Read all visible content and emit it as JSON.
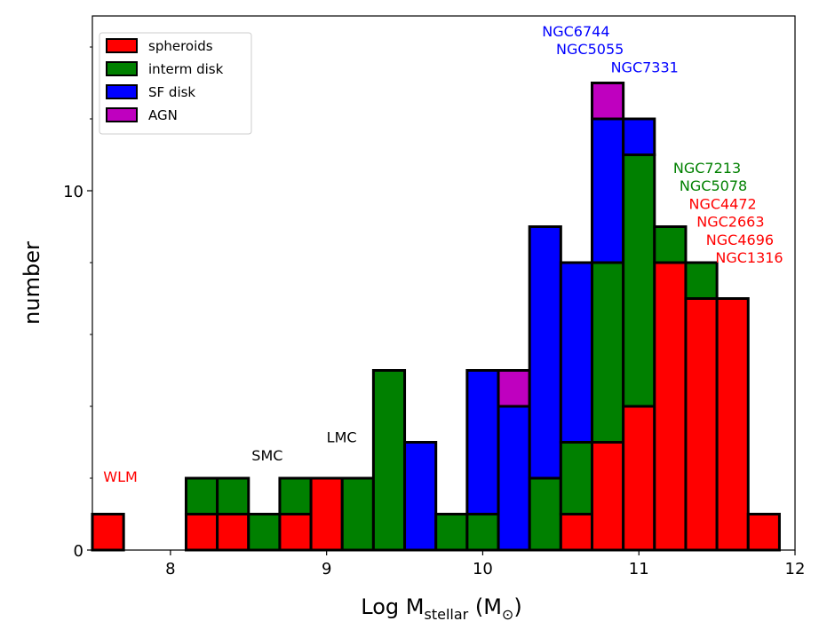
{
  "chart_data": {
    "type": "bar",
    "stacked": true,
    "xlabel": "Log M",
    "xlabel_sub": "stellar",
    "xlabel_units_prefix": " (M",
    "xlabel_units_sub": "⊙",
    "xlabel_units_suffix": ")",
    "ylabel": "number",
    "xlim": [
      7.5,
      12
    ],
    "ylim": [
      0,
      15
    ],
    "xticks": [
      8,
      9,
      10,
      11,
      12
    ],
    "xtick_labels": [
      "8",
      "9",
      "10",
      "11",
      "12"
    ],
    "yticks": [
      0,
      10
    ],
    "ytick_labels": [
      "0",
      "10"
    ],
    "bin_width": 0.2,
    "bin_starts": [
      7.5,
      8.1,
      8.3,
      8.5,
      8.7,
      8.9,
      9.1,
      9.3,
      9.5,
      9.7,
      9.9,
      10.1,
      10.3,
      10.5,
      10.7,
      10.9,
      11.1,
      11.3,
      11.5,
      11.7
    ],
    "series": [
      {
        "name": "spheroids",
        "color": "#ff0000",
        "values": [
          1,
          1,
          1,
          0,
          1,
          2,
          0,
          0,
          0,
          0,
          0,
          0,
          0,
          1,
          3,
          4,
          8,
          7,
          7,
          1
        ]
      },
      {
        "name": "interm disk",
        "color": "#008000",
        "values": [
          0,
          1,
          1,
          1,
          1,
          0,
          2,
          5,
          0,
          1,
          1,
          0,
          2,
          2,
          5,
          7,
          1,
          1,
          0,
          0
        ]
      },
      {
        "name": "SF disk",
        "color": "#0000ff",
        "values": [
          0,
          0,
          0,
          0,
          0,
          0,
          0,
          0,
          3,
          0,
          4,
          4,
          7,
          5,
          4,
          1,
          0,
          0,
          0,
          0
        ]
      },
      {
        "name": "AGN",
        "color": "#bf00bf",
        "values": [
          0,
          0,
          0,
          0,
          0,
          0,
          0,
          0,
          0,
          0,
          0,
          1,
          0,
          0,
          1,
          0,
          0,
          0,
          0,
          0
        ]
      }
    ],
    "legend_position": "top-left",
    "annotations": [
      {
        "text": "WLM",
        "color": "#ff0000",
        "x": 7.57,
        "y": 1.9
      },
      {
        "text": "SMC",
        "color": "#000000",
        "x": 8.52,
        "y": 2.5
      },
      {
        "text": "LMC",
        "color": "#000000",
        "x": 9.0,
        "y": 3.0
      },
      {
        "text": "NGC6744",
        "color": "#0000ff",
        "x": 10.38,
        "y": 14.3
      },
      {
        "text": "NGC5055",
        "color": "#0000ff",
        "x": 10.47,
        "y": 13.8
      },
      {
        "text": "NGC7331",
        "color": "#0000ff",
        "x": 10.82,
        "y": 13.3
      },
      {
        "text": "NGC7213",
        "color": "#008000",
        "x": 11.22,
        "y": 10.5
      },
      {
        "text": "NGC5078",
        "color": "#008000",
        "x": 11.26,
        "y": 10.0
      },
      {
        "text": "NGC4472",
        "color": "#ff0000",
        "x": 11.32,
        "y": 9.5
      },
      {
        "text": "NGC2663",
        "color": "#ff0000",
        "x": 11.37,
        "y": 9.0
      },
      {
        "text": "NGC4696",
        "color": "#ff0000",
        "x": 11.43,
        "y": 8.5
      },
      {
        "text": "NGC1316",
        "color": "#ff0000",
        "x": 11.49,
        "y": 8.0
      }
    ]
  }
}
